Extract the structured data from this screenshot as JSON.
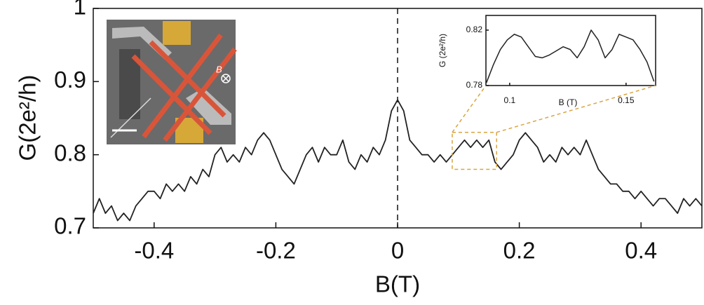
{
  "chart_data": [
    {
      "type": "line",
      "xlabel": "B(T)",
      "ylabel": "G(2e²/h)",
      "xlim": [
        -0.5,
        0.5
      ],
      "ylim": [
        0.7,
        1
      ],
      "xticks": [
        -0.4,
        -0.2,
        0,
        0.2,
        0.4
      ],
      "yticks": [
        0.7,
        0.8,
        0.9,
        1
      ],
      "color": "#222222",
      "x": [
        -0.5,
        -0.49,
        -0.48,
        -0.47,
        -0.46,
        -0.45,
        -0.44,
        -0.43,
        -0.42,
        -0.41,
        -0.4,
        -0.39,
        -0.38,
        -0.37,
        -0.36,
        -0.35,
        -0.34,
        -0.33,
        -0.32,
        -0.31,
        -0.3,
        -0.29,
        -0.28,
        -0.27,
        -0.26,
        -0.25,
        -0.24,
        -0.23,
        -0.22,
        -0.21,
        -0.2,
        -0.19,
        -0.18,
        -0.17,
        -0.16,
        -0.15,
        -0.14,
        -0.13,
        -0.12,
        -0.11,
        -0.1,
        -0.09,
        -0.08,
        -0.07,
        -0.06,
        -0.05,
        -0.04,
        -0.03,
        -0.02,
        -0.01,
        0,
        0.01,
        0.02,
        0.03,
        0.04,
        0.05,
        0.06,
        0.07,
        0.08,
        0.09,
        0.1,
        0.11,
        0.12,
        0.13,
        0.14,
        0.15,
        0.16,
        0.17,
        0.18,
        0.19,
        0.2,
        0.21,
        0.22,
        0.23,
        0.24,
        0.25,
        0.26,
        0.27,
        0.28,
        0.29,
        0.3,
        0.31,
        0.32,
        0.33,
        0.34,
        0.35,
        0.36,
        0.37,
        0.38,
        0.39,
        0.4,
        0.41,
        0.42,
        0.43,
        0.44,
        0.45,
        0.46,
        0.47,
        0.48,
        0.49,
        0.5
      ],
      "values": [
        0.72,
        0.74,
        0.72,
        0.73,
        0.71,
        0.72,
        0.71,
        0.73,
        0.74,
        0.75,
        0.75,
        0.74,
        0.76,
        0.75,
        0.76,
        0.75,
        0.77,
        0.76,
        0.78,
        0.77,
        0.8,
        0.81,
        0.79,
        0.8,
        0.79,
        0.81,
        0.8,
        0.82,
        0.83,
        0.82,
        0.8,
        0.78,
        0.77,
        0.76,
        0.78,
        0.8,
        0.81,
        0.79,
        0.81,
        0.8,
        0.8,
        0.82,
        0.79,
        0.78,
        0.8,
        0.79,
        0.81,
        0.8,
        0.82,
        0.86,
        0.875,
        0.86,
        0.82,
        0.81,
        0.8,
        0.8,
        0.79,
        0.8,
        0.79,
        0.8,
        0.81,
        0.82,
        0.81,
        0.82,
        0.81,
        0.82,
        0.79,
        0.78,
        0.79,
        0.8,
        0.82,
        0.83,
        0.82,
        0.81,
        0.79,
        0.8,
        0.79,
        0.81,
        0.8,
        0.81,
        0.8,
        0.82,
        0.8,
        0.78,
        0.77,
        0.76,
        0.76,
        0.75,
        0.75,
        0.74,
        0.75,
        0.74,
        0.73,
        0.74,
        0.74,
        0.73,
        0.72,
        0.74,
        0.73,
        0.74,
        0.73
      ]
    },
    {
      "type": "line",
      "xlabel": "B (T)",
      "ylabel": "G (2e²/h)",
      "xlim": [
        0.0898,
        0.1627
      ],
      "ylim": [
        0.78,
        0.8306
      ],
      "xticks": [
        0.1,
        0.15
      ],
      "yticks": [
        0.78,
        0.82
      ],
      "color": "#222222",
      "x": [
        0.09,
        0.093,
        0.096,
        0.099,
        0.102,
        0.105,
        0.108,
        0.111,
        0.114,
        0.117,
        0.12,
        0.123,
        0.126,
        0.129,
        0.132,
        0.135,
        0.138,
        0.141,
        0.144,
        0.147,
        0.15,
        0.153,
        0.156,
        0.159,
        0.162
      ],
      "values": [
        0.782,
        0.795,
        0.806,
        0.813,
        0.817,
        0.815,
        0.808,
        0.801,
        0.8,
        0.802,
        0.805,
        0.808,
        0.806,
        0.8,
        0.808,
        0.82,
        0.813,
        0.8,
        0.806,
        0.817,
        0.815,
        0.813,
        0.806,
        0.797,
        0.783
      ]
    }
  ],
  "inset_image": {
    "label": "B"
  }
}
